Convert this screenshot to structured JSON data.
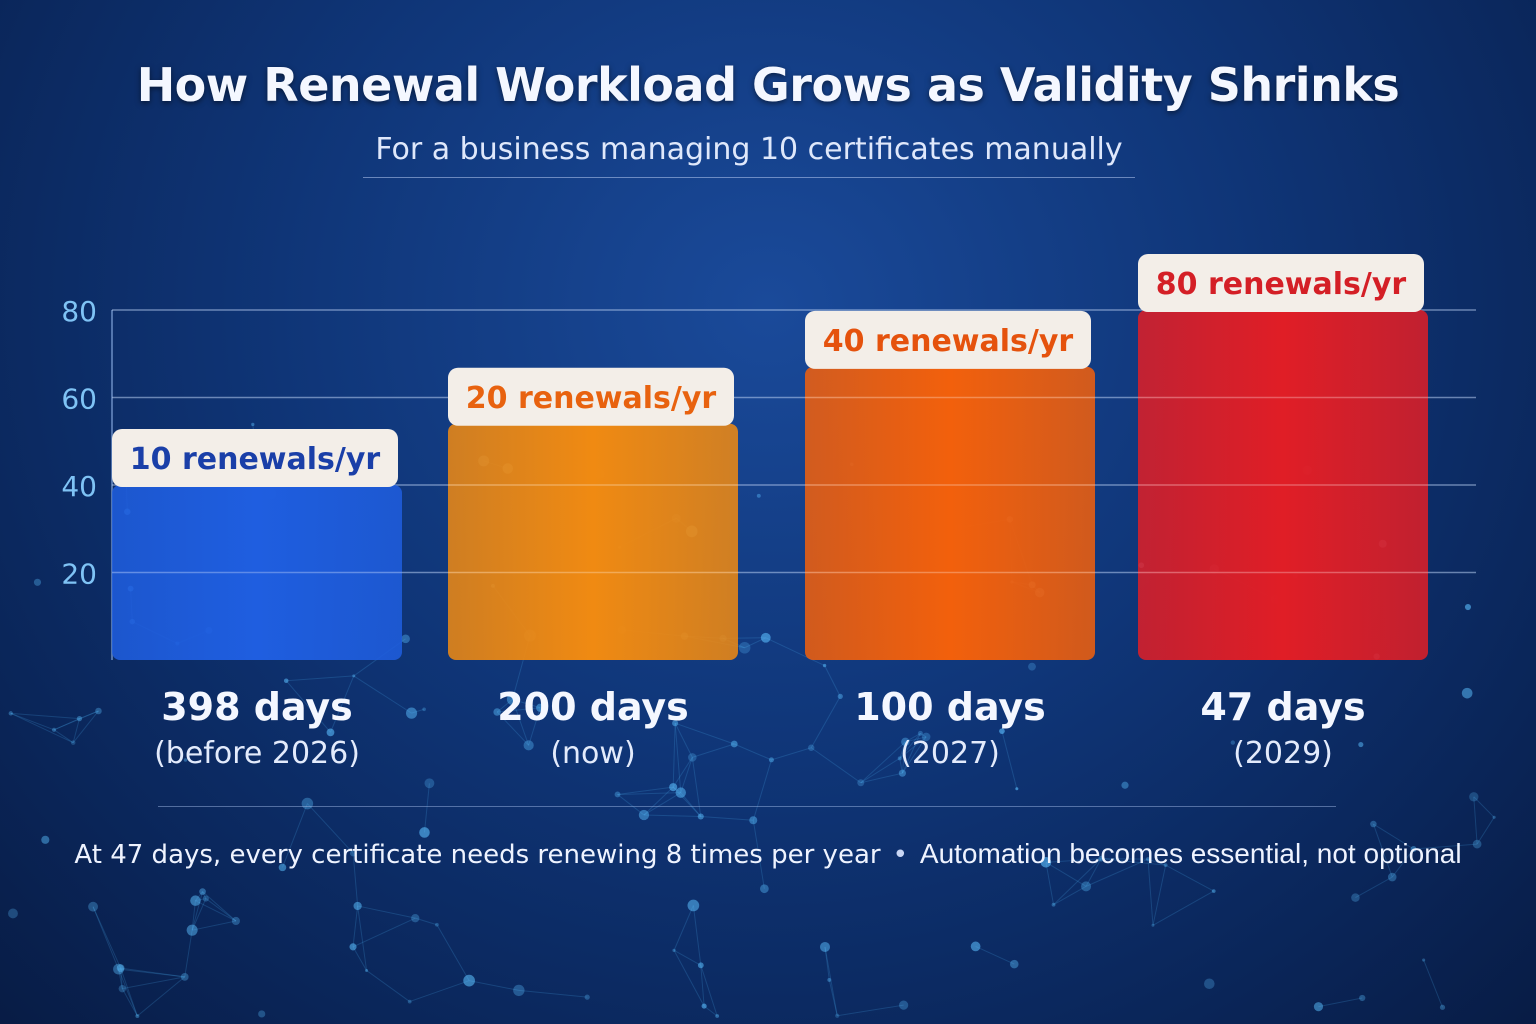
{
  "title": "How Renewal Workload Grows as Validity Shrinks",
  "subtitle": "For a business managing 10 certificates manually",
  "footer": {
    "left": "At 47 days, every certificate needs renewing 8 times per year",
    "separator": "•",
    "right": "Automation becomes essential, not optional"
  },
  "chart_data": {
    "type": "bar",
    "categories": [
      "398 days",
      "200 days",
      "100 days",
      "47 days"
    ],
    "category_sublabels": [
      "(before 2026)",
      "(now)",
      "(2027)",
      "(2029)"
    ],
    "values": [
      40,
      54,
      67,
      80
    ],
    "data_labels": [
      "10 renewals/yr",
      "20 renewals/yr",
      "40 renewals/yr",
      "80 renewals/yr"
    ],
    "colors": [
      "#1f5ee0",
      "#f08a12",
      "#f2600c",
      "#e01e26"
    ],
    "label_colors": [
      "#1a3fa8",
      "#e8620f",
      "#e5520d",
      "#d41f26"
    ],
    "yticks": [
      20,
      40,
      60,
      80
    ],
    "ylim": [
      0,
      80
    ],
    "grid": true,
    "title": "How Renewal Workload Grows as Validity Shrinks",
    "xlabel": "",
    "ylabel": ""
  }
}
